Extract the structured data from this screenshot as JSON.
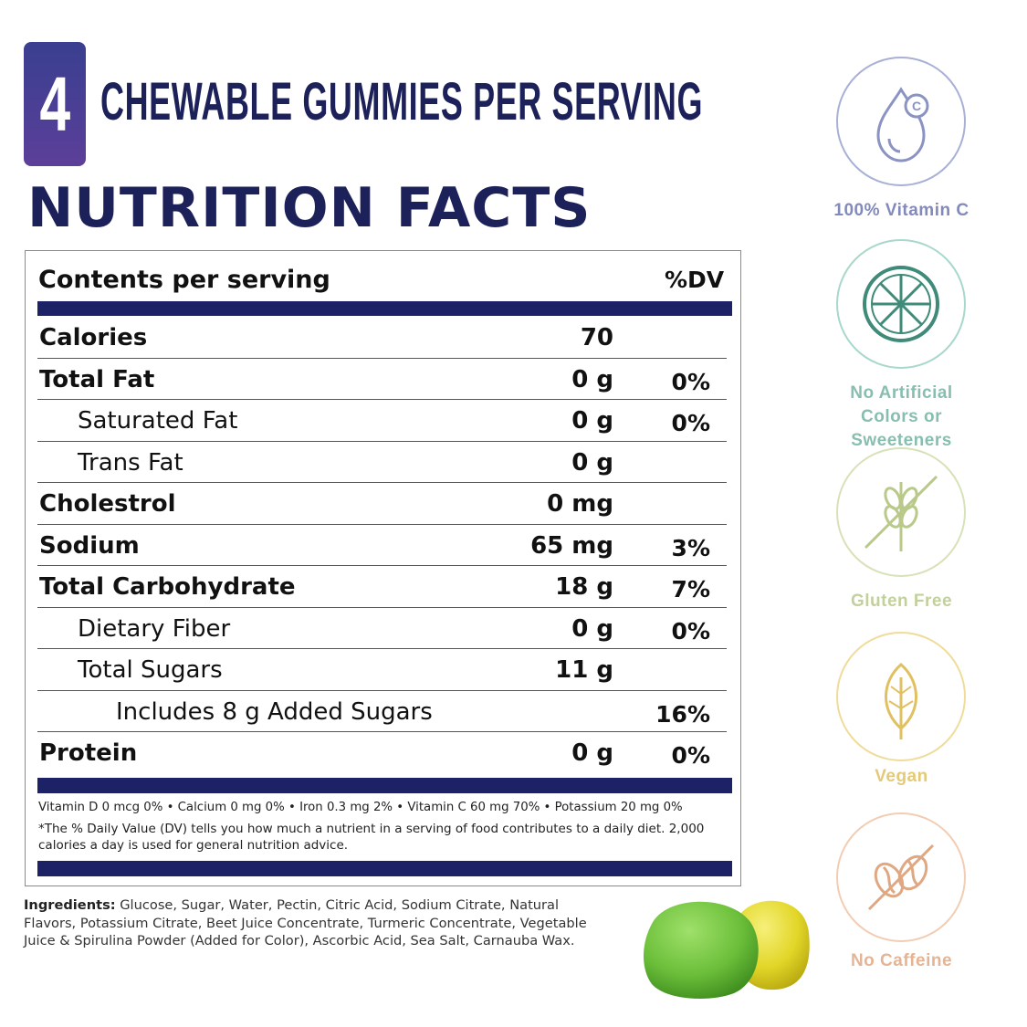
{
  "header": {
    "serving_count": "4",
    "serving_text": "CHEWABLE GUMMIES PER SERVING",
    "section_title": "NUTRITION FACTS"
  },
  "facts": {
    "contents_label": "Contents per serving",
    "dv_label": "%DV",
    "rows": [
      {
        "name": "Calories",
        "amount": "70",
        "dv": ""
      },
      {
        "name": "Total Fat",
        "amount": "0 g",
        "dv": "0%"
      },
      {
        "name": "Saturated Fat",
        "amount": "0 g",
        "dv": "0%"
      },
      {
        "name": "Trans Fat",
        "amount": "0 g",
        "dv": ""
      },
      {
        "name": "Cholestrol",
        "amount": "0 mg",
        "dv": ""
      },
      {
        "name": "Sodium",
        "amount": "65 mg",
        "dv": "3%"
      },
      {
        "name": "Total Carbohydrate",
        "amount": "18 g",
        "dv": "7%"
      },
      {
        "name": "Dietary Fiber",
        "amount": "0 g",
        "dv": "0%"
      },
      {
        "name": "Total Sugars",
        "amount": "11 g",
        "dv": ""
      },
      {
        "name": "Includes 8 g Added Sugars",
        "amount": "",
        "dv": "16%"
      },
      {
        "name": "Protein",
        "amount": "0 g",
        "dv": "0%"
      }
    ],
    "vitamins_line": "Vitamin D 0 mcg 0% • Calcium 0 mg 0% • Iron 0.3 mg 2% • Vitamin C 60 mg 70% • Potassium 20 mg 0%",
    "dv_footnote": "*The % Daily Value (DV) tells you how much a nutrient in a serving of food contributes to a daily diet. 2,000 calories a day is used for general nutrition advice."
  },
  "ingredients": {
    "label": "Ingredients:",
    "text": " Glucose, Sugar, Water, Pectin, Citric Acid, Sodium Citrate, Natural Flavors, Potassium Citrate, Beet Juice Concentrate, Turmeric Concentrate, Vegetable Juice & Spirulina Powder (Added for Color), Ascorbic Acid, Sea Salt, Carnauba Wax."
  },
  "badges": [
    {
      "icon": "vitamin-drop-icon",
      "label": "100% Vitamin C",
      "color": "#8a93c2"
    },
    {
      "icon": "citrus-slice-icon",
      "label": "No Artificial Colors or Sweeteners",
      "color": "#3f8a78"
    },
    {
      "icon": "gluten-free-wheat-icon",
      "label": "Gluten Free",
      "color": "#b8c98a"
    },
    {
      "icon": "vegan-leaf-icon",
      "label": "Vegan",
      "color": "#e0c060"
    },
    {
      "icon": "no-caffeine-bean-icon",
      "label": "No Caffeine",
      "color": "#e0a882"
    }
  ],
  "colors": {
    "navy": "#1d2166",
    "title_navy": "#1d2159",
    "badge_gradient_start": "#3a3f8f",
    "badge_gradient_end": "#5d3f99"
  }
}
